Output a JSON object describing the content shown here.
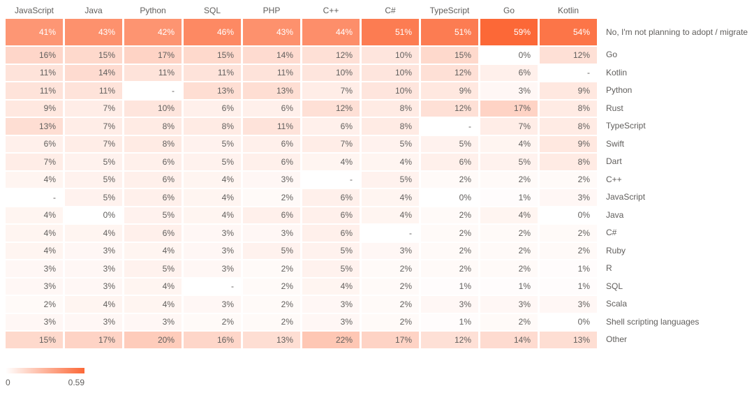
{
  "chart_data": {
    "type": "heatmap",
    "columns": [
      "JavaScript",
      "Java",
      "Python",
      "SQL",
      "PHP",
      "C++",
      "C#",
      "TypeScript",
      "Go",
      "Kotlin"
    ],
    "rows": [
      {
        "label": "No, I'm not planning to adopt / migrate",
        "values": [
          41,
          43,
          42,
          46,
          43,
          44,
          51,
          51,
          59,
          54
        ]
      },
      {
        "label": "Go",
        "values": [
          16,
          15,
          17,
          15,
          14,
          12,
          10,
          15,
          0,
          12
        ]
      },
      {
        "label": "Kotlin",
        "values": [
          11,
          14,
          11,
          11,
          11,
          10,
          10,
          12,
          6,
          null
        ]
      },
      {
        "label": "Python",
        "values": [
          11,
          11,
          null,
          13,
          13,
          7,
          10,
          9,
          3,
          9
        ]
      },
      {
        "label": "Rust",
        "values": [
          9,
          7,
          10,
          6,
          6,
          12,
          8,
          12,
          17,
          8
        ]
      },
      {
        "label": "TypeScript",
        "values": [
          13,
          7,
          8,
          8,
          11,
          6,
          8,
          null,
          7,
          8
        ]
      },
      {
        "label": "Swift",
        "values": [
          6,
          7,
          8,
          5,
          6,
          7,
          5,
          5,
          4,
          9
        ]
      },
      {
        "label": "Dart",
        "values": [
          7,
          5,
          6,
          5,
          6,
          4,
          4,
          6,
          5,
          8
        ]
      },
      {
        "label": "C++",
        "values": [
          4,
          5,
          6,
          4,
          3,
          null,
          5,
          2,
          2,
          2
        ]
      },
      {
        "label": "JavaScript",
        "values": [
          null,
          5,
          6,
          4,
          2,
          6,
          4,
          0,
          1,
          3
        ]
      },
      {
        "label": "Java",
        "values": [
          4,
          0,
          5,
          4,
          6,
          6,
          4,
          2,
          4,
          0
        ]
      },
      {
        "label": "C#",
        "values": [
          4,
          4,
          6,
          3,
          3,
          6,
          null,
          2,
          2,
          2
        ]
      },
      {
        "label": "Ruby",
        "values": [
          4,
          3,
          4,
          3,
          5,
          5,
          3,
          2,
          2,
          2
        ]
      },
      {
        "label": "R",
        "values": [
          3,
          3,
          5,
          3,
          2,
          5,
          2,
          2,
          2,
          1
        ]
      },
      {
        "label": "SQL",
        "values": [
          3,
          3,
          4,
          null,
          2,
          4,
          2,
          1,
          1,
          1
        ]
      },
      {
        "label": "Scala",
        "values": [
          2,
          4,
          4,
          3,
          2,
          3,
          2,
          3,
          3,
          3
        ]
      },
      {
        "label": "Shell scripting languages",
        "values": [
          3,
          3,
          3,
          2,
          2,
          3,
          2,
          1,
          2,
          0
        ]
      },
      {
        "label": "Other",
        "values": [
          15,
          17,
          20,
          16,
          13,
          22,
          17,
          12,
          14,
          13
        ]
      }
    ],
    "value_suffix": "%",
    "null_display": "-",
    "max_value": 59,
    "colors": {
      "min": "#FFFFFF",
      "max": "#FC6837",
      "value_text": "#605E5C",
      "value_text_on_dark": "#FFFFFF",
      "header_text": "#605E5C"
    },
    "legend": {
      "min_label": "0",
      "max_label": "0.59"
    },
    "grid": false,
    "legend_position": "bottom-left"
  }
}
